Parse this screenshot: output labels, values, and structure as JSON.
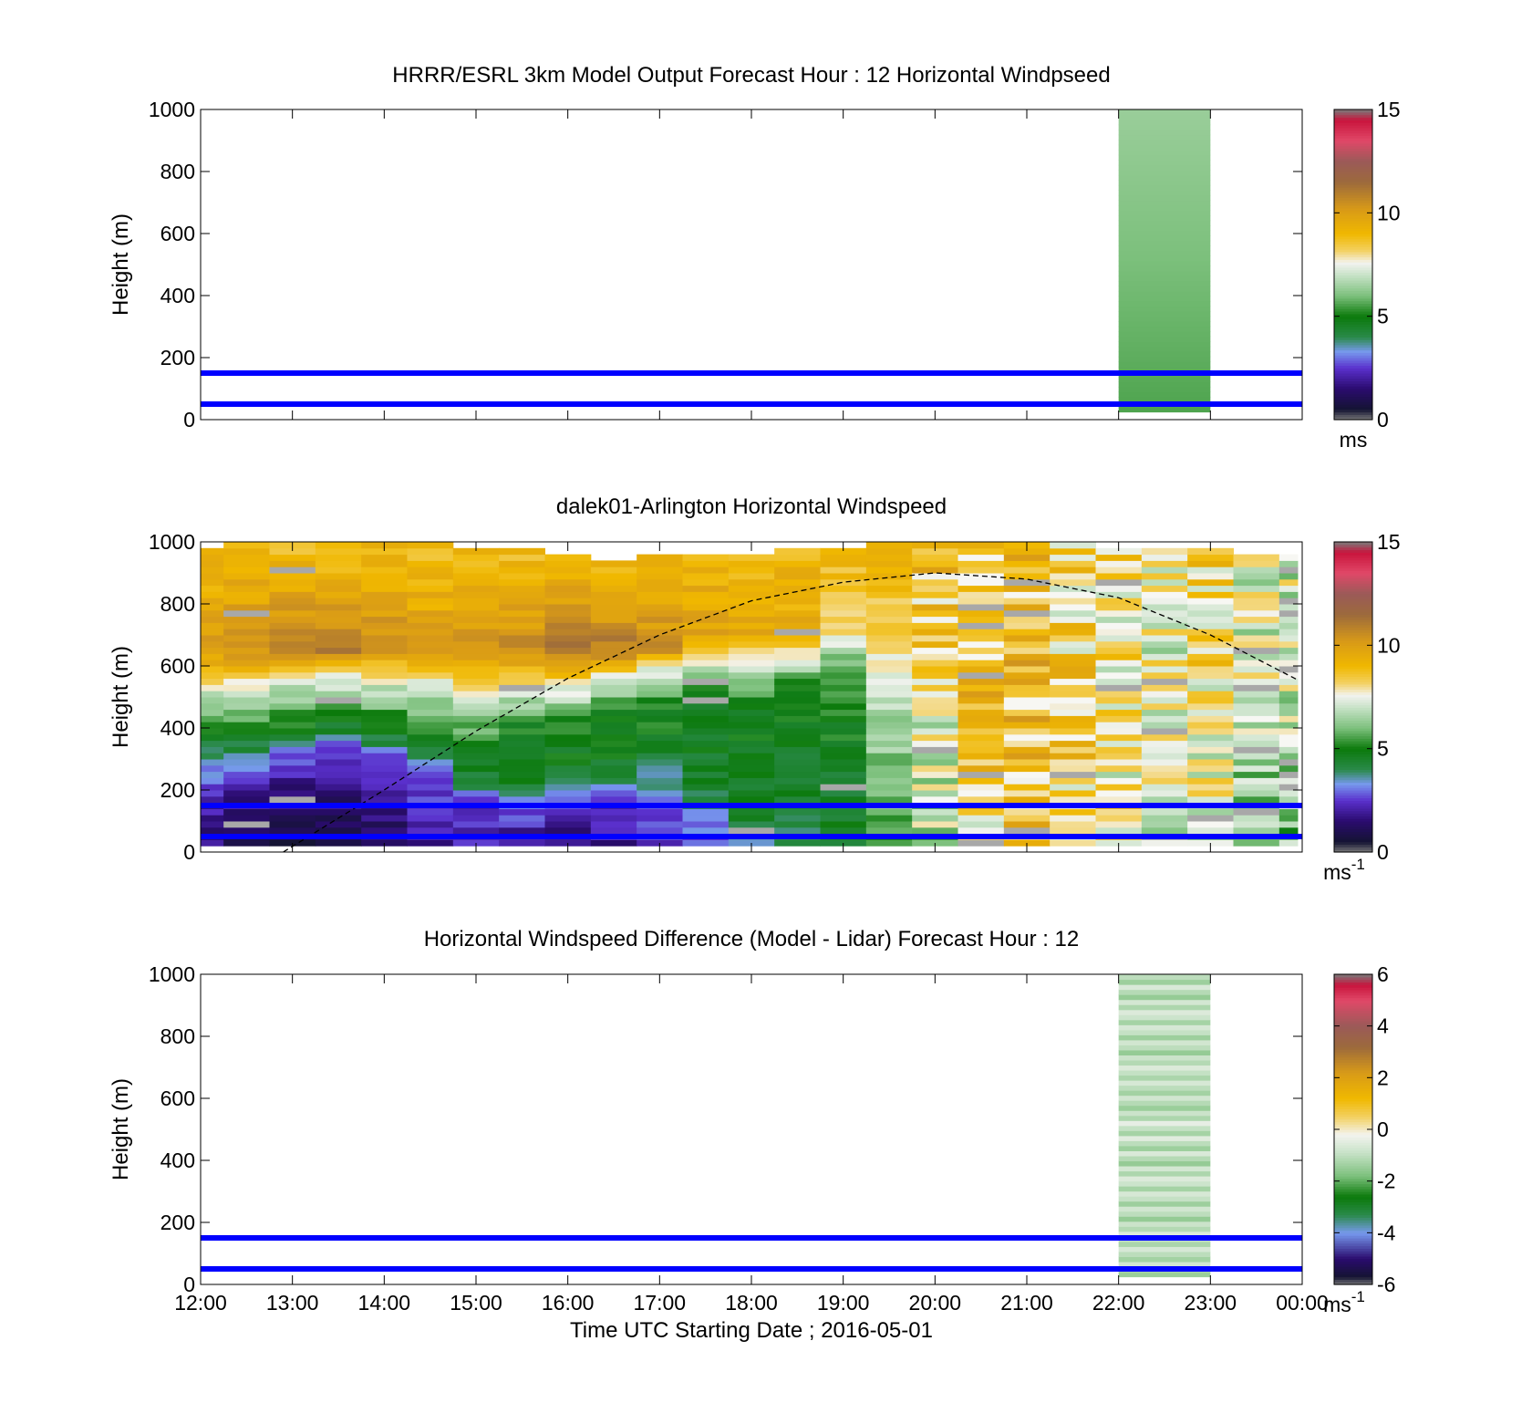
{
  "chart_data": [
    {
      "type": "heatmap",
      "title": "HRRR/ESRL 3km Model Output   Forecast Hour : 12 Horizontal Windpseed",
      "xlabel": "",
      "ylabel": "Height (m)",
      "xlim": [
        "12:00",
        "00:00"
      ],
      "ylim": [
        0,
        1000
      ],
      "yticks": [
        "0",
        "200",
        "400",
        "600",
        "800",
        "1000"
      ],
      "grid": false,
      "colorbar": {
        "ticks": [
          "0",
          "5",
          "10",
          "15"
        ],
        "range": [
          0,
          15
        ],
        "unit": "ms"
      },
      "model_block": {
        "t_start": "22:00",
        "t_end": "23:00",
        "h_bottom": 25,
        "h_top": 1000,
        "value_range": [
          5.6,
          6.4
        ]
      },
      "reference_lines": [
        {
          "height": 50,
          "color": "#0000ff"
        },
        {
          "height": 150,
          "color": "#0000ff"
        }
      ]
    },
    {
      "type": "heatmap",
      "title": "dalek01-Arlington  Horizontal Windspeed",
      "xlabel": "",
      "ylabel": "Height (m)",
      "xlim": [
        "12:00",
        "00:00"
      ],
      "ylim": [
        0,
        1000
      ],
      "yticks": [
        "0",
        "200",
        "400",
        "600",
        "800",
        "1000"
      ],
      "grid": false,
      "colorbar": {
        "ticks": [
          "0",
          "5",
          "10",
          "15"
        ],
        "range": [
          0,
          15
        ],
        "unit": "ms",
        "unit_exp": "-1"
      },
      "columns": [
        {
          "t": "12:00",
          "top": 970,
          "profile": [
            [
              0,
              1.5
            ],
            [
              150,
              2.0
            ],
            [
              250,
              3.0
            ],
            [
              350,
              4.5
            ],
            [
              450,
              6.0
            ],
            [
              530,
              7.5
            ],
            [
              650,
              10.0
            ],
            [
              950,
              9.0
            ]
          ]
        },
        {
          "t": "12:15",
          "top": 990,
          "profile": [
            [
              0,
              1.2
            ],
            [
              150,
              1.8
            ],
            [
              250,
              2.5
            ],
            [
              350,
              4.5
            ],
            [
              460,
              6.0
            ],
            [
              540,
              7.5
            ],
            [
              650,
              10.5
            ],
            [
              950,
              9.0
            ]
          ]
        },
        {
          "t": "12:45",
          "top": 1000,
          "profile": [
            [
              0,
              0.8
            ],
            [
              150,
              1.5
            ],
            [
              280,
              2.2
            ],
            [
              380,
              4.5
            ],
            [
              480,
              6.0
            ],
            [
              560,
              7.5
            ],
            [
              650,
              11.0
            ],
            [
              950,
              9.0
            ]
          ]
        },
        {
          "t": "13:15",
          "top": 1000,
          "profile": [
            [
              0,
              1.0
            ],
            [
              150,
              1.5
            ],
            [
              300,
              2.0
            ],
            [
              400,
              4.5
            ],
            [
              490,
              6.0
            ],
            [
              560,
              7.5
            ],
            [
              650,
              11.0
            ],
            [
              950,
              9.0
            ]
          ]
        },
        {
          "t": "13:45",
          "top": 990,
          "profile": [
            [
              0,
              1.2
            ],
            [
              150,
              1.8
            ],
            [
              280,
              2.5
            ],
            [
              380,
              4.5
            ],
            [
              480,
              6.0
            ],
            [
              560,
              7.5
            ],
            [
              650,
              10.5
            ],
            [
              950,
              9.0
            ]
          ]
        },
        {
          "t": "14:15",
          "top": 990,
          "profile": [
            [
              0,
              1.8
            ],
            [
              150,
              2.5
            ],
            [
              250,
              3.0
            ],
            [
              350,
              5.0
            ],
            [
              460,
              6.0
            ],
            [
              540,
              7.5
            ],
            [
              650,
              10.0
            ],
            [
              950,
              9.0
            ]
          ]
        },
        {
          "t": "14:45",
          "top": 980,
          "profile": [
            [
              0,
              2.0
            ],
            [
              150,
              2.5
            ],
            [
              200,
              3.5
            ],
            [
              300,
              5.0
            ],
            [
              430,
              6.0
            ],
            [
              520,
              7.5
            ],
            [
              650,
              10.5
            ],
            [
              950,
              9.0
            ]
          ]
        },
        {
          "t": "15:15",
          "top": 980,
          "profile": [
            [
              0,
              1.5
            ],
            [
              120,
              2.5
            ],
            [
              200,
              4.0
            ],
            [
              250,
              4.8
            ],
            [
              420,
              5.0
            ],
            [
              520,
              7.5
            ],
            [
              650,
              10.5
            ],
            [
              950,
              9.0
            ]
          ]
        },
        {
          "t": "15:45",
          "top": 950,
          "profile": [
            [
              0,
              1.5
            ],
            [
              120,
              2.0
            ],
            [
              200,
              3.0
            ],
            [
              300,
              4.8
            ],
            [
              420,
              5.0
            ],
            [
              530,
              7.5
            ],
            [
              650,
              11.0
            ],
            [
              950,
              9.0
            ]
          ]
        },
        {
          "t": "16:15",
          "top": 940,
          "profile": [
            [
              0,
              1.8
            ],
            [
              150,
              2.5
            ],
            [
              230,
              4.0
            ],
            [
              300,
              4.8
            ],
            [
              450,
              5.0
            ],
            [
              560,
              7.5
            ],
            [
              650,
              11.0
            ],
            [
              950,
              9.0
            ]
          ]
        },
        {
          "t": "16:45",
          "top": 950,
          "profile": [
            [
              0,
              2.0
            ],
            [
              150,
              3.0
            ],
            [
              250,
              4.0
            ],
            [
              350,
              4.8
            ],
            [
              470,
              5.0
            ],
            [
              600,
              7.5
            ],
            [
              650,
              10.5
            ],
            [
              950,
              9.0
            ]
          ]
        },
        {
          "t": "17:15",
          "top": 960,
          "profile": [
            [
              0,
              2.8
            ],
            [
              120,
              3.2
            ],
            [
              200,
              4.5
            ],
            [
              350,
              4.6
            ],
            [
              500,
              5.0
            ],
            [
              620,
              7.5
            ],
            [
              700,
              10.0
            ],
            [
              950,
              9.0
            ]
          ]
        },
        {
          "t": "17:45",
          "top": 960,
          "profile": [
            [
              0,
              3.5
            ],
            [
              150,
              4.5
            ],
            [
              300,
              4.5
            ],
            [
              500,
              5.2
            ],
            [
              600,
              7.5
            ],
            [
              700,
              9.5
            ],
            [
              950,
              9.0
            ]
          ]
        },
        {
          "t": "18:15",
          "top": 970,
          "profile": [
            [
              0,
              4.0
            ],
            [
              150,
              4.5
            ],
            [
              300,
              4.5
            ],
            [
              550,
              5.5
            ],
            [
              640,
              7.5
            ],
            [
              720,
              9.5
            ],
            [
              950,
              9.0
            ]
          ]
        },
        {
          "t": "18:45",
          "top": 980,
          "profile": [
            [
              0,
              4.5
            ],
            [
              200,
              4.6
            ],
            [
              400,
              5.0
            ],
            [
              600,
              5.5
            ],
            [
              700,
              8.0
            ],
            [
              950,
              9.0
            ]
          ]
        },
        {
          "t": "19:15",
          "top": 1000,
          "profile": [
            [
              0,
              5.5
            ],
            [
              200,
              6.0
            ],
            [
              450,
              6.5
            ],
            [
              600,
              7.5
            ],
            [
              750,
              8.5
            ],
            [
              950,
              9.0
            ]
          ]
        },
        {
          "t": "19:45",
          "top": 990,
          "profile": [
            [
              0,
              6.5
            ],
            [
              200,
              7.0
            ],
            [
              400,
              7.5
            ],
            [
              600,
              8.0
            ],
            [
              800,
              8.5
            ],
            [
              950,
              9.0
            ]
          ]
        },
        {
          "t": "20:15",
          "top": 1000,
          "profile": [
            [
              0,
              8.0
            ],
            [
              200,
              8.5
            ],
            [
              400,
              8.8
            ],
            [
              600,
              9.0
            ],
            [
              800,
              9.0
            ],
            [
              950,
              9.0
            ]
          ]
        },
        {
          "t": "20:45",
          "top": 1000,
          "profile": [
            [
              0,
              8.5
            ],
            [
              200,
              8.8
            ],
            [
              400,
              9.0
            ],
            [
              600,
              9.2
            ],
            [
              800,
              9.0
            ],
            [
              950,
              9.0
            ]
          ]
        },
        {
          "t": "21:15",
          "top": 990,
          "profile": [
            [
              0,
              8.0
            ],
            [
              200,
              8.3
            ],
            [
              400,
              8.5
            ],
            [
              600,
              8.5
            ],
            [
              800,
              8.0
            ],
            [
              950,
              8.5
            ]
          ]
        },
        {
          "t": "21:45",
          "top": 980,
          "profile": [
            [
              0,
              7.5
            ],
            [
              200,
              7.6
            ],
            [
              400,
              7.8
            ],
            [
              600,
              8.0
            ],
            [
              800,
              7.5
            ],
            [
              950,
              8.0
            ]
          ]
        },
        {
          "t": "22:15",
          "top": 980,
          "profile": [
            [
              0,
              6.8
            ],
            [
              200,
              7.0
            ],
            [
              400,
              7.3
            ],
            [
              600,
              7.5
            ],
            [
              800,
              7.3
            ],
            [
              950,
              7.5
            ]
          ]
        },
        {
          "t": "22:45",
          "top": 970,
          "profile": [
            [
              0,
              7.0
            ],
            [
              200,
              7.5
            ],
            [
              400,
              7.8
            ],
            [
              600,
              8.2
            ],
            [
              800,
              8.0
            ],
            [
              950,
              8.5
            ]
          ]
        },
        {
          "t": "23:15",
          "top": 960,
          "profile": [
            [
              0,
              6.0
            ],
            [
              200,
              6.5
            ],
            [
              400,
              7.0
            ],
            [
              600,
              7.3
            ],
            [
              800,
              7.2
            ],
            [
              950,
              7.5
            ]
          ]
        },
        {
          "t": "23:45",
          "top": 950,
          "profile": [
            [
              0,
              6.0
            ],
            [
              200,
              6.5
            ],
            [
              400,
              6.8
            ],
            [
              600,
              7.0
            ],
            [
              800,
              7.0
            ],
            [
              950,
              7.2
            ]
          ]
        }
      ],
      "boundary_layer_curve": {
        "style": "dashed",
        "color": "#000000",
        "points": [
          [
            "12:54",
            0
          ],
          [
            "14:00",
            200
          ],
          [
            "15:00",
            390
          ],
          [
            "16:00",
            560
          ],
          [
            "17:00",
            700
          ],
          [
            "18:00",
            810
          ],
          [
            "19:00",
            870
          ],
          [
            "20:00",
            900
          ],
          [
            "21:00",
            880
          ],
          [
            "22:00",
            820
          ],
          [
            "23:00",
            700
          ],
          [
            "23:57",
            555
          ]
        ]
      },
      "reference_lines": [
        {
          "height": 50,
          "color": "#0000ff"
        },
        {
          "height": 150,
          "color": "#0000ff"
        }
      ]
    },
    {
      "type": "heatmap",
      "title": "Horizontal Windspeed Difference (Model - Lidar) Forecast Hour : 12",
      "xlabel": "Time UTC  Starting Date ; 2016-05-01",
      "ylabel": "Height (m)",
      "xlim": [
        "12:00",
        "00:00"
      ],
      "xticks": [
        "12:00",
        "13:00",
        "14:00",
        "15:00",
        "16:00",
        "17:00",
        "18:00",
        "19:00",
        "20:00",
        "21:00",
        "22:00",
        "23:00",
        "00:00"
      ],
      "ylim": [
        0,
        1000
      ],
      "yticks": [
        "0",
        "200",
        "400",
        "600",
        "800",
        "1000"
      ],
      "grid": false,
      "colorbar": {
        "ticks": [
          "-6",
          "-4",
          "-2",
          "0",
          "2",
          "4",
          "6"
        ],
        "range": [
          -6,
          6
        ],
        "unit": "ms",
        "unit_exp": "-1"
      },
      "model_block": {
        "t_start": "22:00",
        "t_end": "23:00",
        "h_bottom": 25,
        "h_top": 1000,
        "value_range": [
          -2.0,
          -0.4
        ]
      },
      "reference_lines": [
        {
          "height": 50,
          "color": "#0000ff"
        },
        {
          "height": 150,
          "color": "#0000ff"
        }
      ]
    }
  ]
}
